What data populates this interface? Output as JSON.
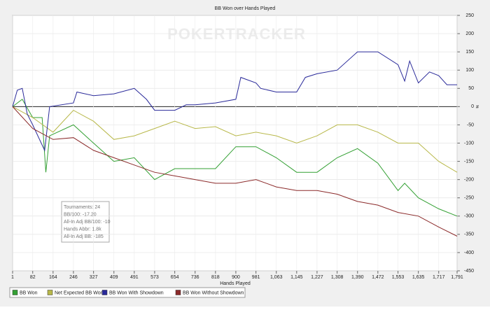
{
  "chart_data": {
    "type": "line",
    "title": "BB Won over Hands Played",
    "watermark": "POKERTRACKER",
    "x_label": "Hands Played",
    "y_label": "#",
    "xlim": [
      1,
      1791
    ],
    "xticks": [
      1,
      82,
      164,
      246,
      327,
      409,
      491,
      573,
      654,
      736,
      818,
      900,
      981,
      {
        "value": 1063,
        "label": "1,063"
      },
      {
        "value": 1145,
        "label": "1,145"
      },
      {
        "value": 1227,
        "label": "1,227"
      },
      {
        "value": 1308,
        "label": "1,308"
      },
      {
        "value": 1390,
        "label": "1,390"
      },
      {
        "value": 1472,
        "label": "1,472"
      },
      {
        "value": 1553,
        "label": "1,553"
      },
      {
        "value": 1635,
        "label": "1,635"
      },
      {
        "value": 1717,
        "label": "1,717"
      },
      {
        "value": 1791,
        "label": "1,791"
      }
    ],
    "ylim": [
      -450,
      250
    ],
    "yticks": [
      250,
      200,
      150,
      100,
      50,
      0,
      -50,
      -100,
      -150,
      -200,
      -250,
      -300,
      -350,
      -400,
      -450
    ],
    "grid": true,
    "stats": [
      "Tournaments: 24",
      "BB/100: -17.20",
      "All-In Adj BB/100: -10",
      "Hands Abbr: 1.8k",
      "All-In Adj BB: -185"
    ],
    "series": [
      {
        "name": "BB Won",
        "color": "#33a033",
        "x": [
          1,
          40,
          82,
          120,
          135,
          150,
          246,
          327,
          409,
          491,
          573,
          654,
          736,
          818,
          900,
          981,
          1063,
          1145,
          1227,
          1308,
          1390,
          1472,
          1553,
          1580,
          1635,
          1717,
          1791
        ],
        "values": [
          0,
          20,
          -30,
          -30,
          -180,
          -80,
          -50,
          -100,
          -150,
          -140,
          -200,
          -170,
          -170,
          -170,
          -110,
          -110,
          -140,
          -180,
          -180,
          -140,
          -115,
          -155,
          -230,
          -210,
          -250,
          -280,
          -300
        ]
      },
      {
        "name": "Net Expected BB Won",
        "color": "#b8b84a",
        "x": [
          1,
          82,
          164,
          246,
          327,
          409,
          491,
          573,
          654,
          736,
          818,
          900,
          981,
          1063,
          1145,
          1227,
          1308,
          1390,
          1472,
          1553,
          1635,
          1717,
          1791
        ],
        "values": [
          0,
          -30,
          -70,
          -10,
          -40,
          -90,
          -80,
          -60,
          -40,
          -60,
          -55,
          -80,
          -70,
          -80,
          -100,
          -80,
          -50,
          -50,
          -70,
          -100,
          -100,
          -150,
          -180
        ]
      },
      {
        "name": "BB Won With Showdown",
        "color": "#2a2a9a",
        "x": [
          1,
          20,
          40,
          60,
          82,
          130,
          150,
          246,
          260,
          327,
          409,
          491,
          540,
          573,
          654,
          700,
          736,
          818,
          900,
          920,
          981,
          1000,
          1063,
          1145,
          1180,
          1227,
          1308,
          1390,
          1472,
          1553,
          1580,
          1600,
          1635,
          1680,
          1717,
          1750,
          1791
        ],
        "values": [
          0,
          45,
          50,
          -20,
          -50,
          -120,
          0,
          10,
          40,
          30,
          35,
          50,
          20,
          -10,
          -10,
          5,
          5,
          10,
          20,
          80,
          65,
          50,
          40,
          40,
          80,
          90,
          100,
          150,
          150,
          115,
          70,
          125,
          65,
          95,
          85,
          60,
          60
        ]
      },
      {
        "name": "BB Won Without Showdown",
        "color": "#8b2a2a",
        "x": [
          1,
          82,
          164,
          246,
          327,
          409,
          491,
          573,
          654,
          736,
          818,
          900,
          981,
          1063,
          1145,
          1227,
          1308,
          1390,
          1472,
          1553,
          1635,
          1717,
          1791
        ],
        "values": [
          0,
          -60,
          -90,
          -85,
          -120,
          -140,
          -160,
          -180,
          -190,
          -200,
          -210,
          -210,
          -200,
          -220,
          -230,
          -230,
          -240,
          -260,
          -270,
          -290,
          -300,
          -330,
          -355
        ]
      }
    ]
  }
}
